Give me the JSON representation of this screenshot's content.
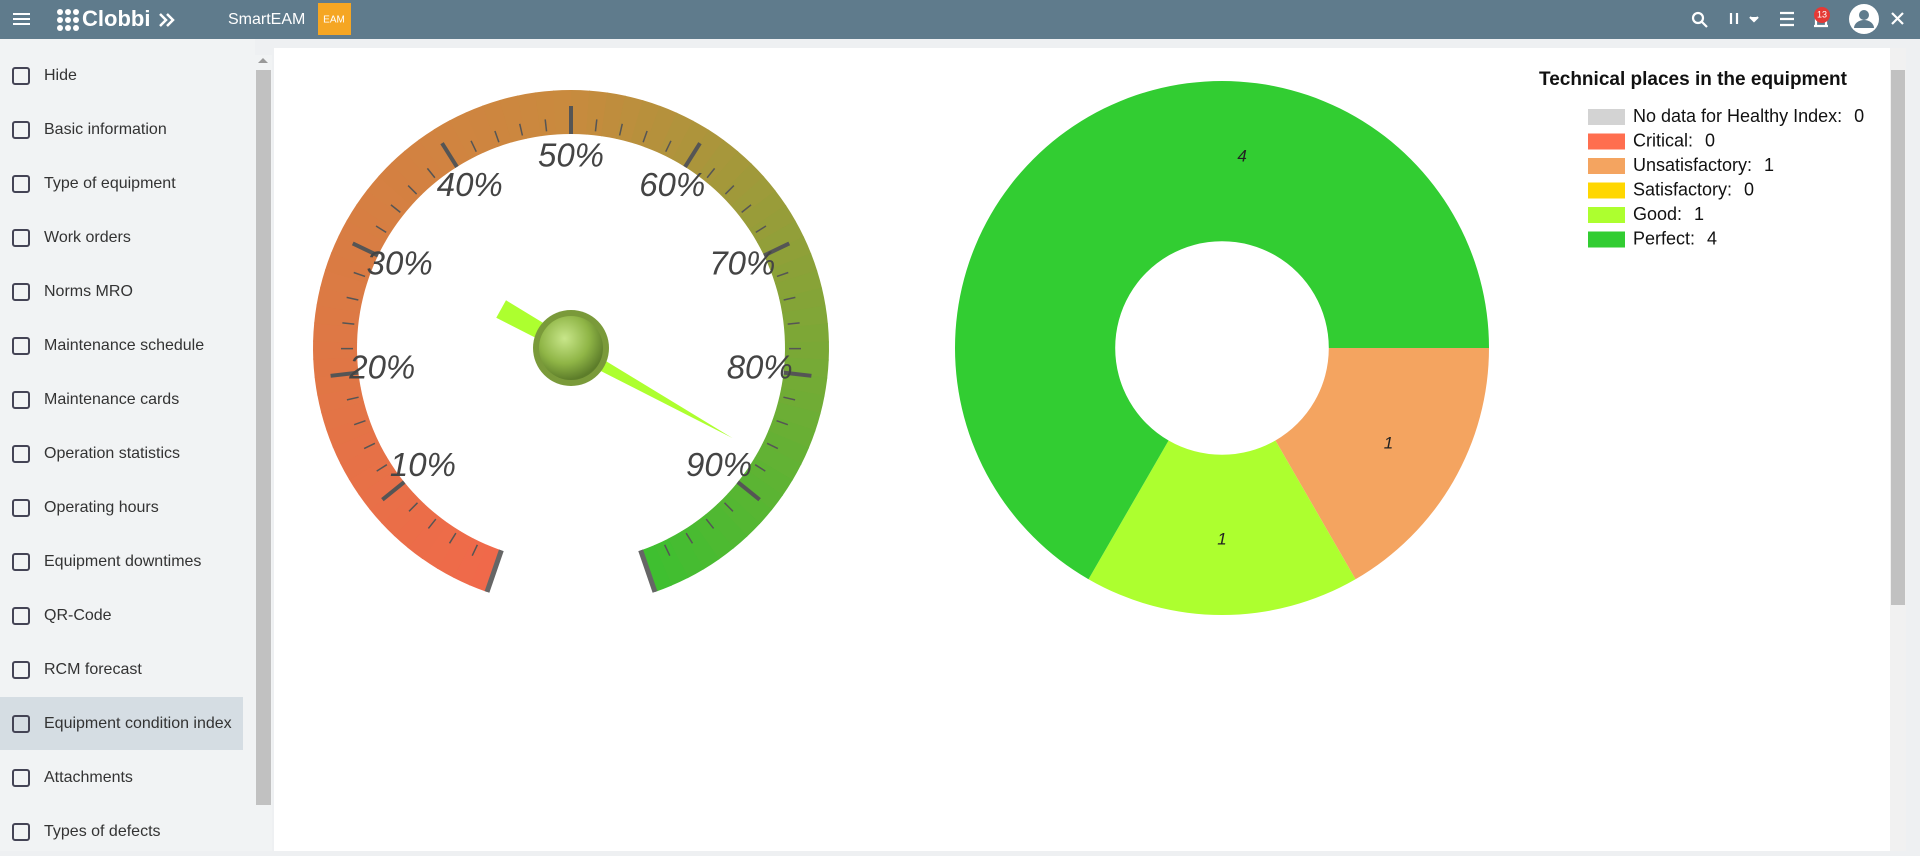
{
  "header": {
    "brand": "Clobbi",
    "app": "SmartEAM",
    "logo": "EAM",
    "badge": "13"
  },
  "sidebar": {
    "items": [
      "Hide",
      "Basic information",
      "Type of equipment",
      "Work orders",
      "Norms MRO",
      "Maintenance schedule",
      "Maintenance cards",
      "Operation statistics",
      "Operating hours",
      "Equipment downtimes",
      "QR-Code",
      "RCM forecast",
      "Equipment condition index",
      "Attachments",
      "Types of defects"
    ],
    "active": 12
  },
  "chart_data": [
    {
      "type": "gauge",
      "value": 87,
      "lim": [
        0,
        100
      ],
      "ticks": [
        {
          "value": 10,
          "label": "10%"
        },
        {
          "value": 20,
          "label": "20%"
        },
        {
          "value": 30,
          "label": "30%"
        },
        {
          "value": 40,
          "label": "40%"
        },
        {
          "value": 50,
          "label": "50%"
        },
        {
          "value": 60,
          "label": "60%"
        },
        {
          "value": 70,
          "label": "70%"
        },
        {
          "value": 80,
          "label": "80%"
        },
        {
          "value": 90,
          "label": "90%"
        }
      ],
      "colors": [
        "#f0694a",
        "#c88a3e",
        "#3fbf30"
      ],
      "needle_color": "#adff2f"
    },
    {
      "type": "pie",
      "title": "Technical places in the equipment",
      "categories": [
        "No data for Healthy Index:",
        "Critical:",
        "Unsatisfactory:",
        "Satisfactory:",
        "Good:",
        "Perfect:"
      ],
      "values": [
        0,
        0,
        1,
        0,
        1,
        4
      ],
      "colors": [
        "#d3d3d3",
        "#ff6e4f",
        "#f4a460",
        "#ffd700",
        "#adff2f",
        "#32cd32"
      ],
      "hole": 0.4,
      "legend": "top-right"
    }
  ]
}
